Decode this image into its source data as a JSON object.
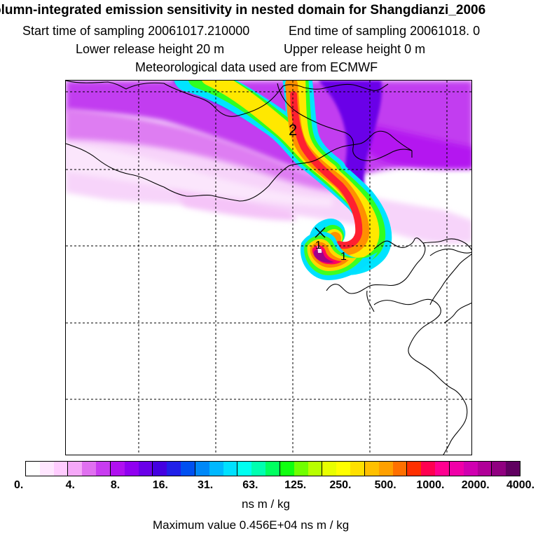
{
  "title": "olumn-integrated emission sensitivity in nested domain for Shangdianzi_2006",
  "start_sampling": "Start time of sampling 20061017.210000",
  "end_sampling": "End time of sampling 20061018.     0",
  "lower_release": "Lower release height   20 m",
  "upper_release": "Upper release height    0 m",
  "met_data": "Meteorological data used are from ECMWF",
  "map": {
    "contour_label": "2",
    "release_marker_label": "1",
    "receptor_marker_label": "1"
  },
  "colorbar": {
    "tick_labels": [
      "0.",
      "4.",
      "8.",
      "16.",
      "31.",
      "63.",
      "125.",
      "250.",
      "500.",
      "1000.",
      "2000.",
      "4000."
    ],
    "colors": [
      "#ffffff",
      "#ffe6ff",
      "#ffccff",
      "#f5a8f8",
      "#e070f0",
      "#c83cf0",
      "#b010f0",
      "#9000f0",
      "#6a00e8",
      "#4400e0",
      "#2020e8",
      "#0050f0",
      "#0088f8",
      "#00b8ff",
      "#00e0ff",
      "#00fff0",
      "#00ffb0",
      "#00ff60",
      "#10ff10",
      "#70ff00",
      "#b8ff00",
      "#e8ff00",
      "#ffff00",
      "#ffe000",
      "#ffc000",
      "#ffa000",
      "#ff7000",
      "#ff3000",
      "#ff0050",
      "#ff0090",
      "#f000a8",
      "#d000b0",
      "#b00098",
      "#900080",
      "#600060"
    ],
    "unit": "ns m / kg"
  },
  "max_value": "Maximum value  0.456E+04 ns m / kg"
}
